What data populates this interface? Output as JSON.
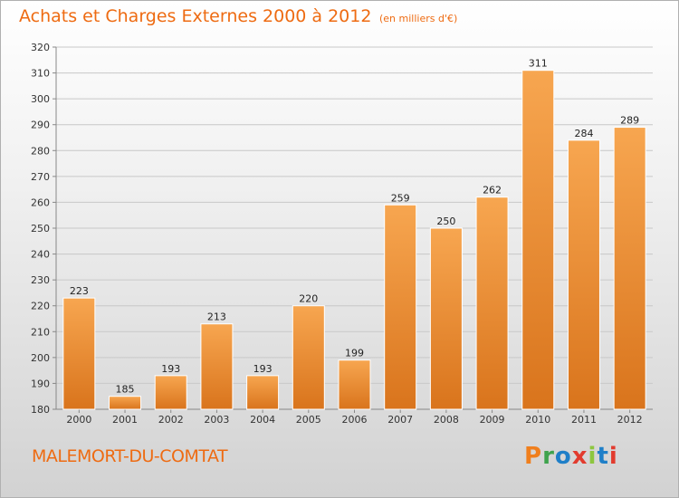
{
  "header": {
    "title": "Achats et Charges Externes 2000 à 2012",
    "subtitle": "(en milliers d'€)"
  },
  "footer": {
    "location": "MALEMORT-DU-COMTAT",
    "logo_text": "Proxiti",
    "logo_colors": [
      "#f07f1d",
      "#3fa34d",
      "#1f7fc8",
      "#e23b2e",
      "#8dc63f",
      "#1f7fc8",
      "#e23b2e"
    ]
  },
  "colors": {
    "bar_light": "#f7a650",
    "bar_dark": "#d9741c",
    "accent": "#ee6b12",
    "grid": "#c8c8c8"
  },
  "chart_data": {
    "type": "bar",
    "title": "Achats et Charges Externes 2000 à 2012",
    "subtitle": "(en milliers d'€)",
    "categories": [
      "2000",
      "2001",
      "2002",
      "2003",
      "2004",
      "2005",
      "2006",
      "2007",
      "2008",
      "2009",
      "2010",
      "2011",
      "2012"
    ],
    "values": [
      223,
      185,
      193,
      213,
      193,
      220,
      199,
      259,
      250,
      262,
      311,
      284,
      289
    ],
    "ylim": [
      180,
      320
    ],
    "yticks": [
      180,
      190,
      200,
      210,
      220,
      230,
      240,
      250,
      260,
      270,
      280,
      290,
      300,
      310,
      320
    ],
    "grid": true,
    "data_labels": true
  }
}
